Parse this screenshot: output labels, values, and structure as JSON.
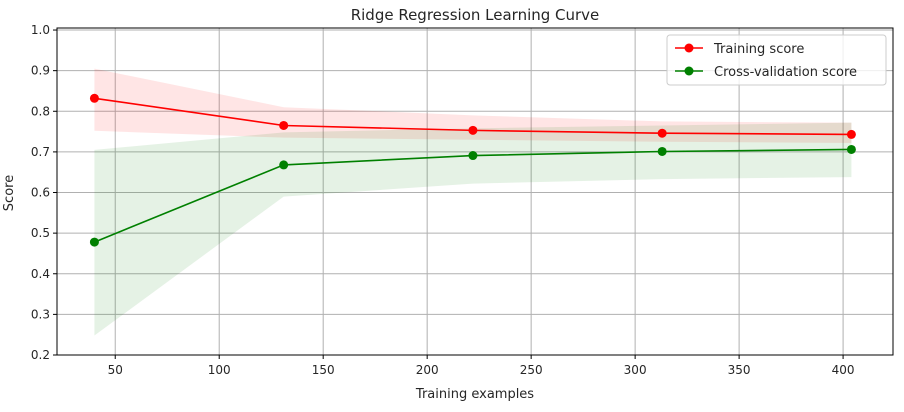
{
  "chart_data": {
    "type": "line",
    "title": "Ridge Regression Learning Curve",
    "xlabel": "Training examples",
    "ylabel": "Score",
    "xlim": [
      22,
      424
    ],
    "ylim": [
      0.2,
      1.005
    ],
    "xticks": [
      50,
      100,
      150,
      200,
      250,
      300,
      350,
      400
    ],
    "yticks": [
      0.2,
      0.3,
      0.4,
      0.5,
      0.6,
      0.7,
      0.8,
      0.9,
      1.0
    ],
    "grid": true,
    "legend_position": "top-right",
    "x": [
      40,
      131,
      222,
      313,
      404
    ],
    "series": [
      {
        "name": "Training score",
        "color": "#ff0000",
        "fill_color": "#ffcccc",
        "values": [
          0.832,
          0.765,
          0.753,
          0.746,
          0.743
        ],
        "band_upper": [
          0.905,
          0.81,
          0.79,
          0.775,
          0.772
        ],
        "band_lower": [
          0.752,
          0.735,
          0.73,
          0.725,
          0.722
        ]
      },
      {
        "name": "Cross-validation score",
        "color": "#008000",
        "fill_color": "#cce5cc",
        "values": [
          0.478,
          0.668,
          0.691,
          0.701,
          0.706
        ],
        "band_upper": [
          0.705,
          0.748,
          0.758,
          0.765,
          0.772
        ],
        "band_lower": [
          0.248,
          0.59,
          0.622,
          0.633,
          0.638
        ]
      }
    ]
  }
}
